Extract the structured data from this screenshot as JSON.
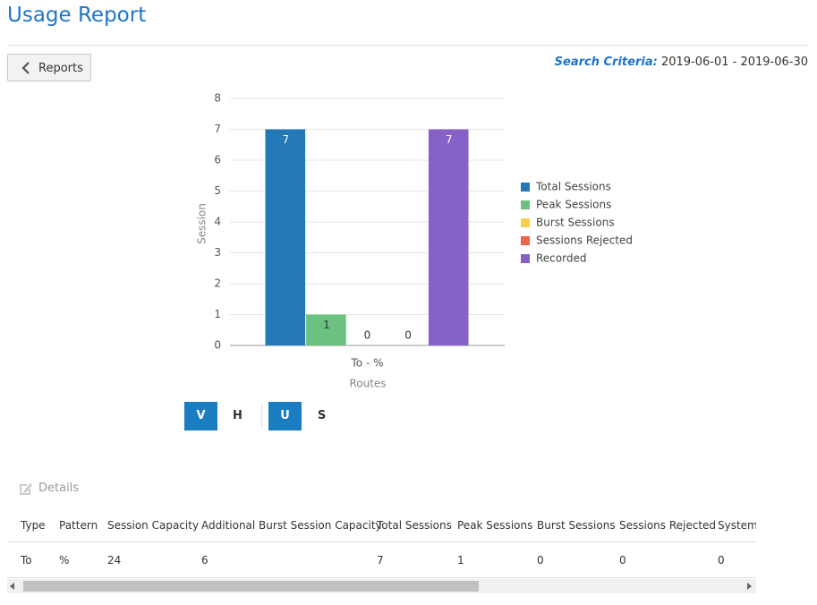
{
  "header": {
    "title": "Usage Report"
  },
  "back_button": "Reports",
  "search_criteria": {
    "label": "Search Criteria:",
    "value": "2019-06-01 - 2019-06-30"
  },
  "chart_data": {
    "type": "bar",
    "categories": [
      "To - %"
    ],
    "ylabel": "Session",
    "xlabel": "Routes",
    "ylim": [
      0,
      8
    ],
    "yticks": [
      0,
      1,
      2,
      3,
      4,
      5,
      6,
      7,
      8
    ],
    "grid": true,
    "legend": "right",
    "series": [
      {
        "name": "Total Sessions",
        "color": "#2279b5",
        "values": [
          7
        ]
      },
      {
        "name": "Peak Sessions",
        "color": "#6bc17f",
        "values": [
          1
        ]
      },
      {
        "name": "Burst Sessions",
        "color": "#f7cf4f",
        "values": [
          0
        ]
      },
      {
        "name": "Sessions Rejected",
        "color": "#ec6546",
        "values": [
          0
        ]
      },
      {
        "name": "Recorded",
        "color": "#8561c8",
        "values": [
          7
        ]
      }
    ]
  },
  "toggles": [
    "V",
    "H",
    "U",
    "S"
  ],
  "details": {
    "title": "Details"
  },
  "table": {
    "columns": [
      "Type",
      "Pattern",
      "Session Capacity",
      "Additional Burst Session Capacity",
      "Total Sessions",
      "Peak Sessions",
      "Burst Sessions",
      "Sessions Rejected",
      "System"
    ],
    "rows": [
      [
        "To",
        "%",
        "24",
        "6",
        "7",
        "1",
        "0",
        "0",
        "0"
      ]
    ]
  }
}
